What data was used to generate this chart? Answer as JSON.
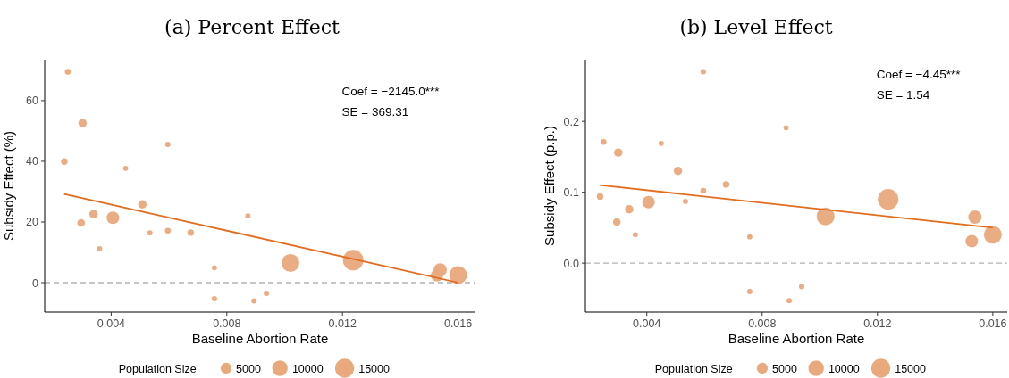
{
  "chart_data": [
    {
      "type": "bubble",
      "title": "(a) Percent Effect",
      "xlabel": "Baseline Abortion Rate",
      "ylabel": "Subsidy Effect (%)",
      "legend_title": "Population Size",
      "grid": false,
      "xlim": [
        0.0017,
        0.0166
      ],
      "xticks": [
        0.004,
        0.008,
        0.012,
        0.016
      ],
      "ylim": [
        -9.7,
        73.5
      ],
      "yticks": [
        0,
        20,
        40,
        60
      ],
      "size_legend": [
        5000,
        10000,
        15000
      ],
      "annotations": [
        "Coef = −2145.0***",
        "SE = 369.31"
      ],
      "ref_lines": [
        {
          "axis": "y",
          "value": 0,
          "color": "#b3b3b3",
          "line_style": "dashed"
        }
      ],
      "series": [
        {
          "color": "#e9a97c",
          "x": [
            0.0025,
            0.00301,
            0.00238,
            0.0045,
            0.00596,
            0.00508,
            0.00339,
            0.00406,
            0.00296,
            0.00534,
            0.00596,
            0.00675,
            0.0036,
            0.00757,
            0.00757,
            0.00873,
            0.00894,
            0.00937,
            0.0102,
            0.01237,
            0.01538,
            0.01527,
            0.016
          ],
          "values": [
            69.5,
            52.6,
            39.9,
            37.7,
            45.6,
            25.8,
            22.6,
            21.4,
            19.7,
            16.4,
            17.1,
            16.5,
            11.2,
            4.9,
            -5.3,
            22.0,
            -6.0,
            -3.5,
            6.5,
            7.4,
            4.2,
            2.4,
            2.5
          ],
          "sizes": [
            1440,
            2900,
            1800,
            1100,
            1200,
            2900,
            2900,
            6500,
            2450,
            1100,
            1440,
            1800,
            1100,
            1100,
            1200,
            1100,
            1200,
            1200,
            13200,
            17500,
            7400,
            6500,
            13200
          ]
        },
        {
          "type": "line",
          "color": "#e36c1e",
          "x": [
            0.00237,
            0.016
          ],
          "values": [
            29.2,
            0.0
          ]
        }
      ]
    },
    {
      "type": "bubble",
      "title": "(b) Level Effect",
      "xlabel": "Baseline Abortion Rate",
      "ylabel": "Subsidy Effect (p.p.)",
      "legend_title": "Population Size",
      "grid": false,
      "xlim": [
        0.00187,
        0.0165
      ],
      "xticks": [
        0.004,
        0.008,
        0.012,
        0.016
      ],
      "ylim": [
        -0.069,
        0.287
      ],
      "yticks": [
        {
          "value": 0,
          "label": "0.0"
        },
        0.1,
        0.2
      ],
      "size_legend": [
        5000,
        10000,
        15000
      ],
      "annotations": [
        "Coef = −4.45***",
        "SE = 1.54"
      ],
      "ref_lines": [
        {
          "axis": "y",
          "value": 0,
          "color": "#b3b3b3",
          "line_style": "dashed"
        }
      ],
      "series": [
        {
          "color": "#e9a97c",
          "x": [
            0.0025,
            0.00301,
            0.00238,
            0.0045,
            0.00596,
            0.00508,
            0.00339,
            0.00406,
            0.00296,
            0.00534,
            0.00596,
            0.00675,
            0.0036,
            0.00757,
            0.00757,
            0.00883,
            0.00894,
            0.00937,
            0.0102,
            0.01237,
            0.01538,
            0.01527,
            0.016
          ],
          "values": [
            0.171,
            0.156,
            0.094,
            0.169,
            0.27,
            0.13,
            0.076,
            0.086,
            0.058,
            0.087,
            0.102,
            0.111,
            0.04,
            0.037,
            -0.04,
            0.191,
            -0.053,
            -0.033,
            0.066,
            0.09,
            0.065,
            0.031,
            0.04
          ],
          "sizes": [
            1440,
            2900,
            1800,
            1100,
            1200,
            2900,
            2900,
            6500,
            2450,
            1100,
            1440,
            1800,
            1100,
            1100,
            1200,
            1100,
            1200,
            1200,
            13200,
            17500,
            7400,
            6500,
            13200
          ]
        },
        {
          "type": "line",
          "color": "#e36c1e",
          "x": [
            0.00237,
            0.016
          ],
          "values": [
            0.11,
            0.05
          ]
        }
      ]
    }
  ]
}
